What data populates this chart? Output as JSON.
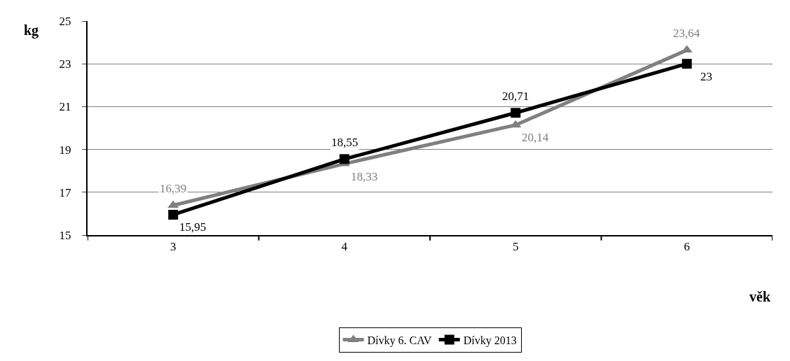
{
  "chart_data": {
    "type": "line",
    "xlabel": "věk",
    "ylabel": "kg",
    "categories": [
      "3",
      "4",
      "5",
      "6"
    ],
    "series": [
      {
        "name": "Dívky 6. CAV",
        "color": "#808080",
        "marker": "triangle",
        "values": [
          16.39,
          18.33,
          20.14,
          23.64
        ],
        "value_labels": [
          "16,39",
          "18,33",
          "20,14",
          "23,64"
        ]
      },
      {
        "name": "Dívky 2013",
        "color": "#000000",
        "marker": "square",
        "values": [
          15.95,
          18.55,
          20.71,
          23
        ],
        "value_labels": [
          "15,95",
          "18,55",
          "20,71",
          "23"
        ]
      }
    ],
    "ylim": [
      15,
      25
    ],
    "yticks": [
      15,
      17,
      19,
      21,
      23,
      25
    ],
    "grid": "y",
    "legend": "bottom",
    "line_style": "solid"
  }
}
